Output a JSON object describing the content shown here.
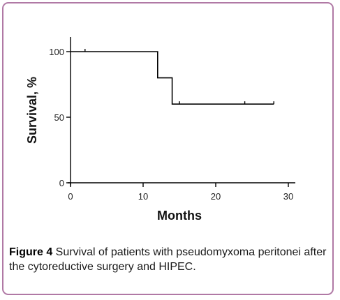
{
  "chart_data": {
    "type": "line",
    "title": "",
    "xlabel": "Months",
    "ylabel": "Survival, %",
    "xlim": [
      0,
      30
    ],
    "ylim": [
      0,
      100
    ],
    "xticks": [
      "0",
      "10",
      "20",
      "30"
    ],
    "yticks": [
      "0",
      "50",
      "100"
    ],
    "grid": false,
    "series": [
      {
        "step": true,
        "x": [
          0,
          12,
          12,
          14,
          14,
          28
        ],
        "y": [
          100,
          100,
          80,
          80,
          60,
          60
        ],
        "censored": [
          {
            "x": 2,
            "y": 100
          },
          {
            "x": 15,
            "y": 60
          },
          {
            "x": 24,
            "y": 60
          },
          {
            "x": 28,
            "y": 60
          }
        ]
      }
    ]
  },
  "caption": {
    "label": "Figure 4",
    "text": " Survival of patients with pseudomyxoma peritonei after the cytoreductive surgery and HIPEC."
  },
  "colors": {
    "frame": "#b079a5",
    "line": "#000000"
  }
}
